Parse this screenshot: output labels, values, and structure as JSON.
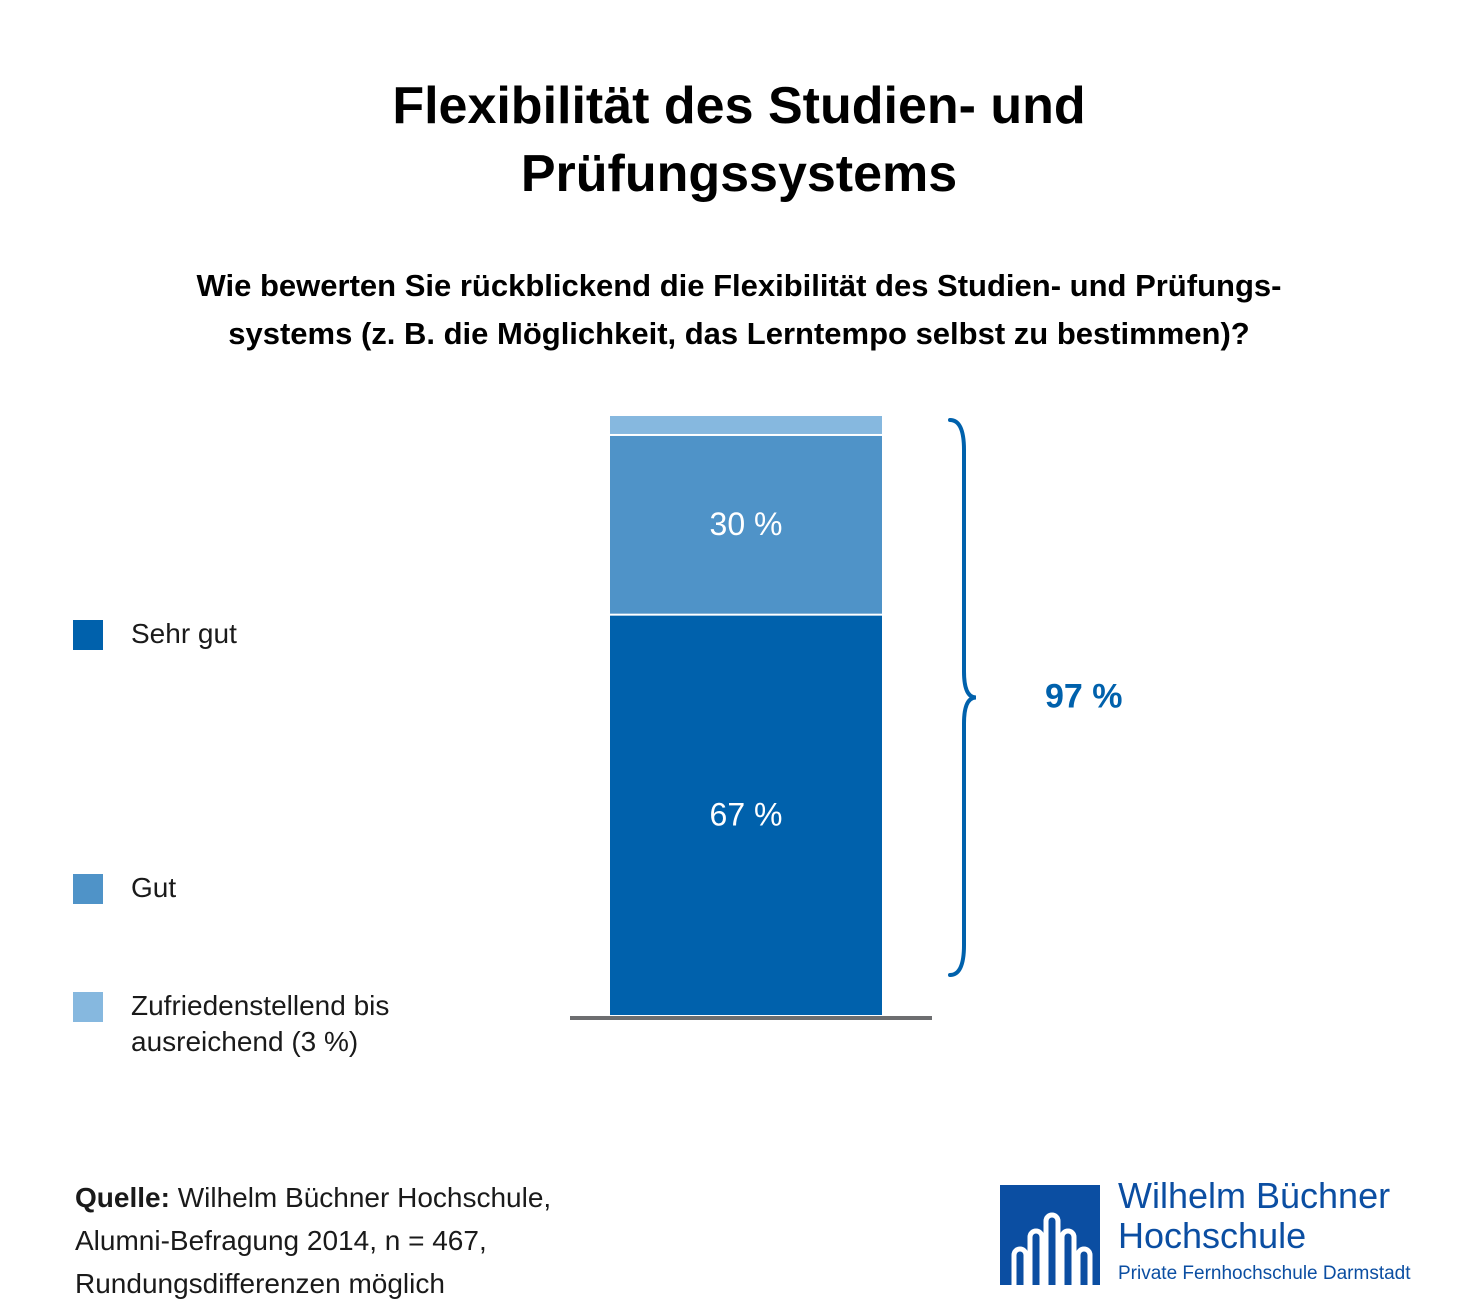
{
  "chart_data": {
    "type": "bar",
    "stacked": true,
    "title": "Flexibilität des Studien- und Prüfungssystems",
    "question_lines": [
      "Wie bewerten Sie rückblickend die Flexibilität des Studien- und Prüfungs-",
      "systems (z. B. die Möglichkeit, das Lerntempo selbst zu bestimmen)?"
    ],
    "unit": "%",
    "series": [
      {
        "name": "Sehr gut",
        "value": 67,
        "label": "67 %",
        "color": "#0061ac"
      },
      {
        "name": "Gut",
        "value": 30,
        "label": "30 %",
        "color": "#4f93c8"
      },
      {
        "name": "Zufriedenstellend bis ausreichend (3 %)",
        "value": 3,
        "label": "",
        "color": "#86b8df"
      }
    ],
    "bracket_total": {
      "value": 97,
      "label": "97 %",
      "color": "#0061ac"
    },
    "axis_color": "#6d6e70"
  },
  "source": {
    "label": "Quelle:",
    "lines": [
      " Wilhelm Büchner Hochschule,",
      "Alumni-Befragung 2014, n = 467,",
      "Rundungsdifferenzen möglich"
    ]
  },
  "logo": {
    "name_line1": "Wilhelm Büchner",
    "name_line2": "Hochschule",
    "subline": "Private Fernhochschule Darmstadt",
    "color": "#0b4ea2"
  }
}
